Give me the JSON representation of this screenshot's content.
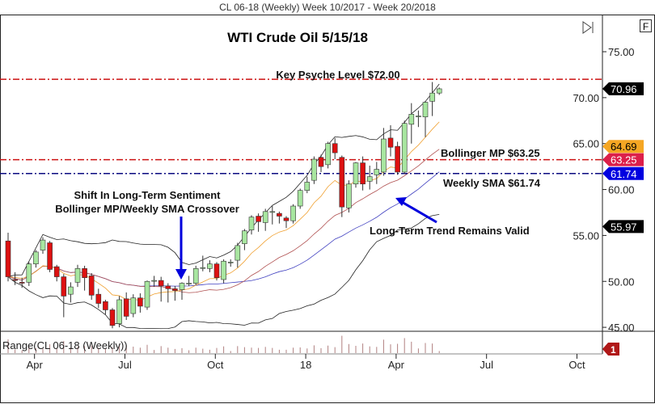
{
  "window_title": "CL 06-18 (Weekly)  Week 10/2017 - Week 20/2018",
  "f_button": "F",
  "chart_data": {
    "type": "candlestick",
    "title": "WTI Crude Oil 5/15/18",
    "ylim": [
      44.5,
      79
    ],
    "y_ticks": [
      "75.00",
      "70.00",
      "65.00",
      "60.00",
      "55.00",
      "50.00",
      "45.00"
    ],
    "y_tick_values": [
      75,
      70,
      65,
      60,
      55,
      50,
      45
    ],
    "x_ticks": [
      "Apr",
      "Jul",
      "Oct",
      "18",
      "Apr",
      "Jul",
      "Oct"
    ],
    "x_tick_weeks": [
      3.8,
      16.8,
      29.8,
      42.8,
      55.8,
      68.8,
      81.8
    ],
    "grid": false,
    "candles": [
      [
        54.4,
        55.3,
        50.0,
        50.5
      ],
      [
        50.2,
        51.0,
        49.6,
        50.1
      ],
      [
        49.9,
        50.4,
        49.3,
        49.8
      ],
      [
        49.9,
        52.1,
        49.5,
        51.9
      ],
      [
        51.9,
        53.4,
        51.5,
        53.2
      ],
      [
        53.4,
        54.8,
        53.0,
        54.5
      ],
      [
        54.2,
        54.4,
        51.0,
        51.3
      ],
      [
        51.6,
        51.8,
        50.0,
        50.5
      ],
      [
        50.5,
        50.8,
        46.1,
        48.4
      ],
      [
        48.6,
        49.9,
        47.7,
        49.4
      ],
      [
        49.9,
        51.8,
        49.4,
        51.4
      ],
      [
        51.4,
        51.7,
        49.0,
        50.4
      ],
      [
        50.6,
        50.9,
        48.0,
        48.5
      ],
      [
        48.6,
        49.2,
        47.1,
        47.6
      ],
      [
        47.8,
        48.0,
        46.4,
        46.9
      ],
      [
        46.9,
        47.1,
        44.9,
        45.2
      ],
      [
        45.4,
        48.4,
        45.0,
        48.0
      ],
      [
        48.1,
        48.8,
        45.8,
        46.2
      ],
      [
        46.5,
        48.6,
        46.1,
        48.2
      ],
      [
        48.2,
        48.7,
        46.6,
        47.3
      ],
      [
        47.2,
        50.1,
        46.9,
        50.0
      ],
      [
        50.1,
        50.6,
        49.4,
        50.1
      ],
      [
        50.1,
        50.5,
        47.8,
        49.5
      ],
      [
        49.5,
        49.8,
        47.7,
        49.2
      ],
      [
        49.2,
        49.5,
        47.9,
        49.0
      ],
      [
        49.1,
        49.9,
        48.0,
        49.8
      ],
      [
        49.8,
        50.6,
        49.5,
        49.8
      ],
      [
        49.8,
        51.7,
        49.6,
        51.4
      ],
      [
        51.5,
        52.8,
        51.1,
        51.5
      ],
      [
        51.4,
        52.3,
        51.0,
        51.9
      ],
      [
        51.9,
        52.1,
        50.1,
        50.4
      ],
      [
        50.2,
        52.4,
        49.8,
        52.2
      ],
      [
        52.1,
        52.4,
        51.6,
        52.1
      ],
      [
        52.3,
        54.2,
        51.5,
        53.9
      ],
      [
        54.1,
        55.7,
        53.4,
        55.5
      ],
      [
        55.6,
        57.2,
        55.1,
        57.0
      ],
      [
        57.1,
        57.4,
        55.4,
        56.5
      ],
      [
        56.4,
        57.9,
        55.5,
        57.6
      ],
      [
        57.6,
        58.2,
        56.2,
        57.6
      ],
      [
        57.4,
        57.6,
        56.3,
        57.1
      ],
      [
        56.9,
        57.1,
        55.8,
        56.6
      ],
      [
        56.6,
        58.4,
        56.3,
        58.2
      ],
      [
        58.2,
        60.1,
        57.9,
        59.9
      ],
      [
        59.9,
        61.4,
        59.6,
        60.8
      ],
      [
        61.0,
        63.6,
        60.6,
        63.3
      ],
      [
        63.5,
        63.8,
        61.9,
        62.5
      ],
      [
        62.7,
        65.2,
        62.3,
        65.0
      ],
      [
        65.0,
        65.6,
        63.3,
        64.0
      ],
      [
        63.5,
        63.7,
        57.0,
        58.1
      ],
      [
        58.0,
        61.0,
        57.5,
        60.6
      ],
      [
        60.6,
        63.0,
        60.2,
        62.9
      ],
      [
        62.9,
        63.6,
        59.9,
        60.6
      ],
      [
        60.9,
        62.6,
        60.0,
        61.4
      ],
      [
        61.6,
        63.0,
        60.6,
        62.2
      ],
      [
        61.9,
        66.7,
        61.5,
        65.5
      ],
      [
        65.6,
        67.0,
        63.6,
        64.6
      ],
      [
        64.7,
        65.2,
        61.6,
        61.9
      ],
      [
        61.9,
        67.5,
        61.7,
        67.2
      ],
      [
        67.1,
        69.4,
        65.0,
        68.2
      ],
      [
        68.0,
        68.6,
        66.8,
        68.0
      ],
      [
        67.9,
        69.6,
        65.7,
        69.5
      ],
      [
        69.6,
        71.7,
        68.0,
        70.5
      ],
      [
        70.5,
        71.1,
        70.3,
        70.96
      ]
    ],
    "indicators": {
      "bollinger_bands": {
        "color": "#222222"
      },
      "bollinger_mp": {
        "color": "#b05050",
        "last": 63.25
      },
      "fast_ma": {
        "color": "#f0a030",
        "last": 64.69
      },
      "weekly_sma": {
        "color": "#4040c0",
        "last": 61.74
      }
    },
    "price_tags": [
      {
        "label": "70.96",
        "value": 70.96,
        "bg": "#000000",
        "fg": "#ffffff"
      },
      {
        "label": "64.69",
        "value": 64.69,
        "bg": "#f5a623",
        "fg": "#000000"
      },
      {
        "label": "63.25",
        "value": 63.25,
        "bg": "#dc1f4a",
        "fg": "#ffffff"
      },
      {
        "label": "61.74",
        "value": 61.74,
        "bg": "#0000e0",
        "fg": "#ffffff"
      },
      {
        "label": "55.97",
        "value": 55.97,
        "bg": "#000000",
        "fg": "#ffffff"
      }
    ],
    "hlines": [
      {
        "value": 72.0,
        "color": "#cc1111",
        "label": "Key Psyche Level $72.00"
      },
      {
        "value": 63.25,
        "color": "#cc1111",
        "label": "Bollinger MP $63.25"
      },
      {
        "value": 61.74,
        "color": "#0a0a80",
        "label": "Weekly SMA $61.74"
      }
    ],
    "annotations": [
      {
        "line1": "Shift In Long-Term Sentiment",
        "line2": "Bollinger MP/Weekly SMA Crossover"
      },
      {
        "line1": "Long-Term Trend Remains Valid"
      }
    ],
    "range_panel": {
      "label": "Range(CL 06-18 (Weekly))",
      "tag": "1",
      "tag_color": "#b01818"
    },
    "colors": {
      "up": "#a8e6a0",
      "down": "#dd1111"
    }
  }
}
